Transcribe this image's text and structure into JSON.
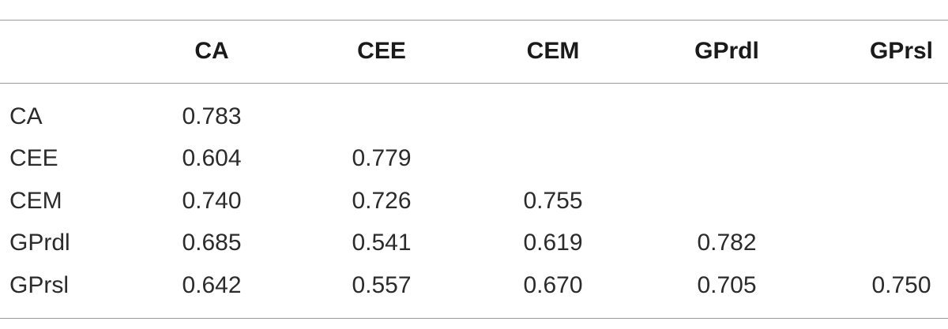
{
  "table": {
    "columns": [
      "CA",
      "CEE",
      "CEM",
      "GPrdl",
      "GPrsl"
    ],
    "rows": [
      {
        "label": "CA",
        "values": [
          "0.783"
        ]
      },
      {
        "label": "CEE",
        "values": [
          "0.604",
          "0.779"
        ]
      },
      {
        "label": "CEM",
        "values": [
          "0.740",
          "0.726",
          "0.755"
        ]
      },
      {
        "label": "GPrdl",
        "values": [
          "0.685",
          "0.541",
          "0.619",
          "0.782"
        ]
      },
      {
        "label": "GPrsl",
        "values": [
          "0.642",
          "0.557",
          "0.670",
          "0.705",
          "0.750"
        ]
      }
    ]
  }
}
